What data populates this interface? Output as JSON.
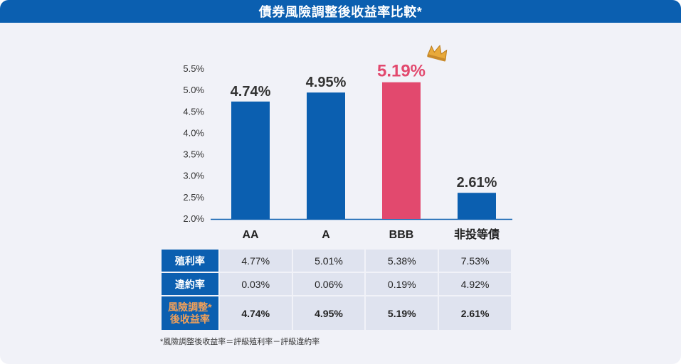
{
  "title": "債券風險調整後收益率比較*",
  "chart_data": {
    "type": "bar",
    "categories": [
      "AA",
      "A",
      "BBB",
      "非投等債"
    ],
    "values": [
      4.74,
      4.95,
      5.19,
      2.61
    ],
    "value_labels": [
      "4.74%",
      "4.95%",
      "5.19%",
      "2.61%"
    ],
    "highlight_index": 2,
    "highlight_icon": "crown-icon",
    "ylim": [
      2.0,
      5.5
    ],
    "yticks": [
      "5.5%",
      "5.0%",
      "4.5%",
      "4.0%",
      "3.5%",
      "3.0%",
      "2.5%",
      "2.0%"
    ],
    "colors": {
      "bar": "#0b5fb0",
      "highlight": "#e2496e",
      "label": "#333333",
      "axis": "#0b5fb0"
    }
  },
  "table": {
    "rows": [
      {
        "label": "殖利率",
        "values": [
          "4.77%",
          "5.01%",
          "5.38%",
          "7.53%"
        ]
      },
      {
        "label": "違約率",
        "values": [
          "0.03%",
          "0.06%",
          "0.19%",
          "4.92%"
        ]
      },
      {
        "label_line1": "風險調整*",
        "label_line2": "後收益率",
        "values": [
          "4.74%",
          "4.95%",
          "5.19%",
          "2.61%"
        ]
      }
    ]
  },
  "footnote": "*風險調整後收益率＝評級殖利率－評級違約率"
}
